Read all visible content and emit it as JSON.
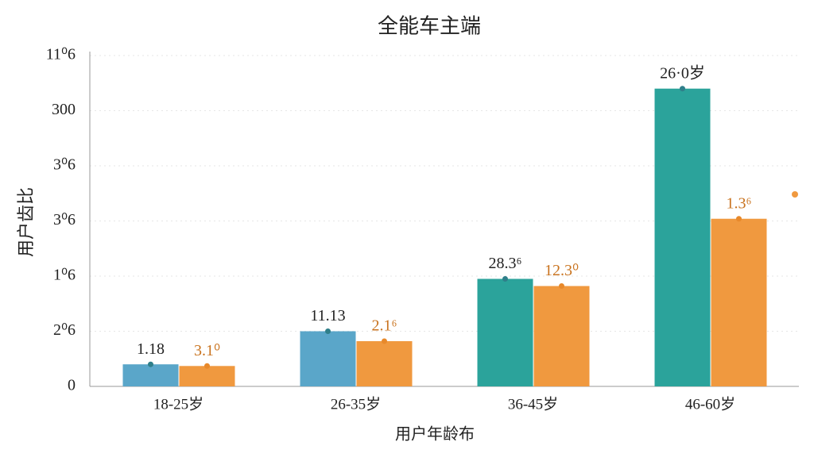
{
  "chart_data": {
    "type": "bar",
    "title": "全能车主端",
    "x_label": "用户年龄布",
    "y_label": "用户齿比",
    "categories": [
      "18-25岁",
      "26-35岁",
      "36-45岁",
      "46-60岁"
    ],
    "series": [
      {
        "colors": [
          "#5aa6c9",
          "#5aa6c9",
          "#2ba39b",
          "#2ba39b"
        ],
        "values": [
          0.4,
          1.0,
          1.95,
          5.4
        ]
      },
      {
        "colors": [
          "#f0993f",
          "#f0993f",
          "#f0993f",
          "#f0993f"
        ],
        "values": [
          0.37,
          0.82,
          1.82,
          3.04
        ]
      }
    ],
    "annotations": [
      [
        "1.18",
        "11.13",
        "28.3⁶",
        "26·0岁"
      ],
      [
        "3.1⁰",
        "2.1⁶",
        "12.3⁰",
        "1.3⁶"
      ]
    ],
    "ylim": [
      0,
      6
    ],
    "yticks": [
      0,
      {
        "value": 1,
        "label": "2⁰6"
      },
      {
        "value": 2,
        "label": "1⁰6"
      },
      {
        "value": 3,
        "label": "3⁰6"
      },
      {
        "value": 4,
        "label": "3⁰6"
      },
      {
        "value": 5,
        "label": "300"
      },
      {
        "value": 6,
        "label": "11⁰6"
      }
    ],
    "grid": true
  }
}
